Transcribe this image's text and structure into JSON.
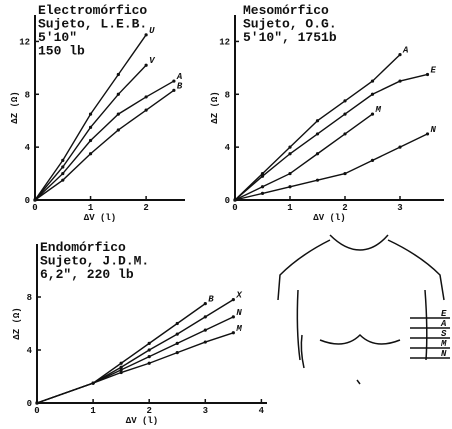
{
  "chart_data": [
    {
      "type": "line",
      "title_lines": [
        "Electromórfico",
        "Sujeto, L.E.B.",
        "5'10\"",
        "150 lb"
      ],
      "xlabel": "ΔV (l)",
      "ylabel": "ΔZ (Ω)",
      "x": [
        0,
        0.5,
        1,
        1.5,
        2,
        2.5
      ],
      "series": [
        {
          "name": "U",
          "color": "#111111",
          "values": [
            0,
            3,
            6.5,
            9.5,
            12.5,
            null
          ]
        },
        {
          "name": "V",
          "color": "#111111",
          "values": [
            0,
            2.5,
            5.5,
            8,
            10.2,
            null
          ]
        },
        {
          "name": "A",
          "color": "#111111",
          "values": [
            0,
            2,
            4.5,
            6.5,
            7.8,
            9
          ]
        },
        {
          "name": "B",
          "color": "#111111",
          "values": [
            0,
            1.5,
            3.5,
            5.3,
            6.8,
            8.3
          ]
        }
      ],
      "xlim": [
        0,
        2.7
      ],
      "ylim": [
        0,
        14
      ],
      "xticks": [
        0,
        1,
        2
      ],
      "yticks": [
        0,
        4,
        8,
        12
      ],
      "grid": false
    },
    {
      "type": "line",
      "title_lines": [
        "Mesomórfico",
        "Sujeto, O.G.",
        "5'10\", 1751b"
      ],
      "xlabel": "ΔV (l)",
      "ylabel": "ΔZ (Ω)",
      "x": [
        0,
        0.5,
        1,
        1.5,
        2,
        2.5,
        3,
        3.5
      ],
      "series": [
        {
          "name": "A",
          "color": "#111111",
          "values": [
            0,
            2,
            4,
            6,
            7.5,
            9,
            11,
            null
          ]
        },
        {
          "name": "E",
          "color": "#111111",
          "values": [
            0,
            1.8,
            3.5,
            5,
            6.5,
            8,
            9,
            9.5
          ]
        },
        {
          "name": "M",
          "color": "#111111",
          "values": [
            0,
            1,
            2,
            3.5,
            5,
            6.5,
            null,
            null
          ]
        },
        {
          "name": "N",
          "color": "#111111",
          "values": [
            0,
            0.5,
            1,
            1.5,
            2,
            3,
            4,
            5
          ]
        }
      ],
      "xlim": [
        0,
        3.8
      ],
      "ylim": [
        0,
        14
      ],
      "xticks": [
        0,
        1,
        2,
        3
      ],
      "yticks": [
        0,
        4,
        8,
        12
      ],
      "grid": false
    },
    {
      "type": "line",
      "title_lines": [
        "Endomórfico",
        "Sujeto, J.D.M.",
        "6,2\", 220 lb"
      ],
      "xlabel": "ΔV (l)",
      "ylabel": "ΔZ (Ω)",
      "x": [
        0,
        1,
        1.5,
        2,
        2.5,
        3,
        3.5
      ],
      "series": [
        {
          "name": "B",
          "color": "#111111",
          "values": [
            0,
            1.5,
            3,
            4.5,
            6,
            7.5,
            null
          ]
        },
        {
          "name": "X",
          "color": "#111111",
          "values": [
            0,
            1.5,
            2.7,
            4,
            5.2,
            6.5,
            7.8
          ]
        },
        {
          "name": "N",
          "color": "#111111",
          "values": [
            0,
            1.5,
            2.5,
            3.5,
            4.5,
            5.5,
            6.5
          ]
        },
        {
          "name": "M",
          "color": "#111111",
          "values": [
            0,
            1.5,
            2.3,
            3,
            3.8,
            4.6,
            5.3
          ]
        }
      ],
      "xlim": [
        0,
        4.1
      ],
      "ylim": [
        0,
        12
      ],
      "xticks": [
        0,
        1,
        2,
        3,
        4
      ],
      "yticks": [
        0,
        4,
        8
      ],
      "grid": false
    }
  ],
  "diagram": {
    "labels": [
      "E",
      "A",
      "S",
      "M",
      "N"
    ]
  }
}
